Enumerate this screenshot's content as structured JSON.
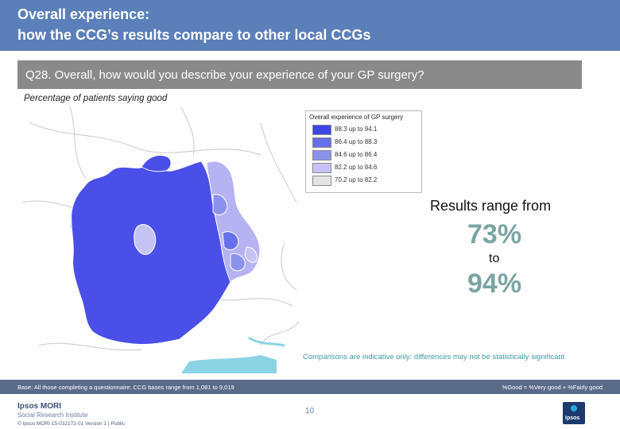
{
  "header": {
    "title_line1": "Overall experience:",
    "title_line2": "how the CCG’s results compare to other local CCGs"
  },
  "question": {
    "text": "Q28. Overall, how would you describe your experience of your GP surgery?"
  },
  "subtitle": "Percentage of patients saying good",
  "legend": {
    "title": "Overall experience of GP surgery",
    "items": [
      {
        "label": "88.3 up to 94.1",
        "color": "#3f46e6"
      },
      {
        "label": "86.4 up to 88.3",
        "color": "#6670ea"
      },
      {
        "label": "84.6 up to 86.4",
        "color": "#8b92ee"
      },
      {
        "label": "82.2 up to 84.6",
        "color": "#c5c3f4"
      },
      {
        "label": "70.2 up to 82.2",
        "color": "#e4e4e4"
      }
    ]
  },
  "results": {
    "range_label": "Results range from",
    "min": "73%",
    "to": "to",
    "max": "94%"
  },
  "note": "Comparisons are indicative only: differences may not be statistically significant",
  "footer": {
    "base": "Base: All those completing a questionnaire: CCG bases range from 1,081 to 9,019",
    "formula": "%Good = %Very good + %Fairly good",
    "page": "10",
    "logo_name": "Ipsos MORI",
    "logo_sub": "Social Research Institute",
    "copyright": "© Ipsos MORI    15-032172-01 Version 1 | Public"
  },
  "colors": {
    "title_bg": "#5b7fb9",
    "question_bg": "#8a8a8a",
    "percent": "#7aa5a3",
    "note": "#3c9aa0",
    "footer_bg": "#5a6b8a"
  }
}
